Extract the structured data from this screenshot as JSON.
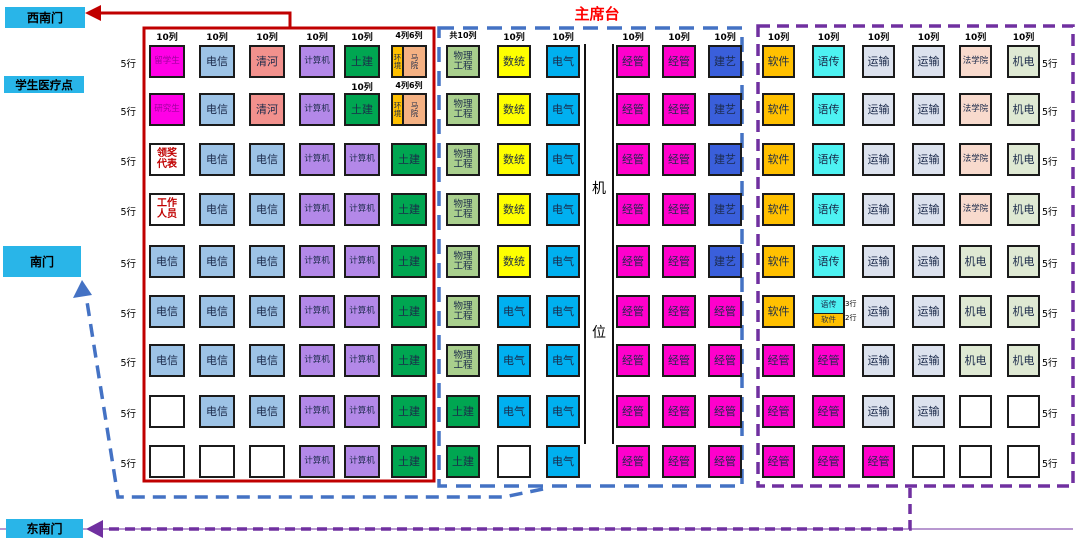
{
  "title": "主席台",
  "gates": {
    "southwest": "西南门",
    "medical": "学生医疗点",
    "south": "南门",
    "southeast": "东南门"
  },
  "row_label": "5行",
  "camera": {
    "chars": [
      "机",
      "位"
    ]
  },
  "palette": {
    "intl": "#FF00E6",
    "grad": "#FF00E6",
    "dianxin": "#9DC3E6",
    "qinghe": "#F2918D",
    "jisuanji": "#B388E8",
    "tujian": "#00A651",
    "huanjing": "#FFC000",
    "mayuan": "#F4B183",
    "wuli": "#A9CF8D",
    "shutong": "#FFFF00",
    "dianqi": "#00B0F0",
    "jingguan": "#FF00CC",
    "jianyi": "#3A5FDB",
    "ruanjian": "#FFC000",
    "yuchuan": "#4DF2F2",
    "yunshu": "#DCE2EE",
    "faxueyuan": "#F8DACD",
    "jidian": "#DFE9D3",
    "gate_bg": "#29B5E8",
    "special_text": "#C00000",
    "left_border": "#C00000",
    "middle_border": "#4472C4",
    "right_border": "#7030A0",
    "stage_title": "#FF0000"
  },
  "sections": {
    "left": {
      "headers": [
        "10列",
        "10列",
        "10列",
        "10列",
        "10列",
        "4列6列"
      ],
      "sub_headers": [
        "10列",
        "4列6列"
      ],
      "rows": [
        [
          {
            "t": "留学生",
            "c": "intl",
            "tc": "#a000a0"
          },
          {
            "t": "电信",
            "c": "dianxin"
          },
          {
            "t": "清河",
            "c": "qinghe"
          },
          {
            "t": "计算机",
            "c": "jisuanji"
          },
          {
            "t": "土建",
            "c": "tujian"
          },
          {
            "vsplit": [
              {
                "t": "环境",
                "c": "huanjing"
              },
              {
                "t": "马院",
                "c": "mayuan"
              }
            ]
          }
        ],
        [
          {
            "t": "研究生",
            "c": "grad",
            "tc": "#a000a0"
          },
          {
            "t": "电信",
            "c": "dianxin"
          },
          {
            "t": "清河",
            "c": "qinghe"
          },
          {
            "t": "计算机",
            "c": "jisuanji"
          },
          {
            "t": "土建",
            "c": "tujian"
          },
          {
            "vsplit": [
              {
                "t": "环境",
                "c": "huanjing"
              },
              {
                "t": "马院",
                "c": "mayuan"
              }
            ]
          }
        ],
        [
          {
            "t": "领奖代表",
            "special": true
          },
          {
            "t": "电信",
            "c": "dianxin"
          },
          {
            "t": "电信",
            "c": "dianxin"
          },
          {
            "t": "计算机",
            "c": "jisuanji"
          },
          {
            "t": "计算机",
            "c": "jisuanji"
          },
          {
            "t": "土建",
            "c": "tujian"
          }
        ],
        [
          {
            "t": "工作人员",
            "special": true
          },
          {
            "t": "电信",
            "c": "dianxin"
          },
          {
            "t": "电信",
            "c": "dianxin"
          },
          {
            "t": "计算机",
            "c": "jisuanji"
          },
          {
            "t": "计算机",
            "c": "jisuanji"
          },
          {
            "t": "土建",
            "c": "tujian"
          }
        ],
        [
          {
            "t": "电信",
            "c": "dianxin"
          },
          {
            "t": "电信",
            "c": "dianxin"
          },
          {
            "t": "电信",
            "c": "dianxin"
          },
          {
            "t": "计算机",
            "c": "jisuanji"
          },
          {
            "t": "计算机",
            "c": "jisuanji"
          },
          {
            "t": "土建",
            "c": "tujian"
          }
        ],
        [
          {
            "t": "电信",
            "c": "dianxin"
          },
          {
            "t": "电信",
            "c": "dianxin"
          },
          {
            "t": "电信",
            "c": "dianxin"
          },
          {
            "t": "计算机",
            "c": "jisuanji"
          },
          {
            "t": "计算机",
            "c": "jisuanji"
          },
          {
            "t": "土建",
            "c": "tujian"
          }
        ],
        [
          {
            "t": "电信",
            "c": "dianxin"
          },
          {
            "t": "电信",
            "c": "dianxin"
          },
          {
            "t": "电信",
            "c": "dianxin"
          },
          {
            "t": "计算机",
            "c": "jisuanji"
          },
          {
            "t": "计算机",
            "c": "jisuanji"
          },
          {
            "t": "土建",
            "c": "tujian"
          }
        ],
        [
          null,
          {
            "t": "电信",
            "c": "dianxin"
          },
          {
            "t": "电信",
            "c": "dianxin"
          },
          {
            "t": "计算机",
            "c": "jisuanji"
          },
          {
            "t": "计算机",
            "c": "jisuanji"
          },
          {
            "t": "土建",
            "c": "tujian"
          }
        ],
        [
          null,
          null,
          null,
          {
            "t": "计算机",
            "c": "jisuanji"
          },
          {
            "t": "计算机",
            "c": "jisuanji"
          },
          {
            "t": "土建",
            "c": "tujian"
          }
        ]
      ]
    },
    "middle": {
      "headers": [
        "共10列",
        "10列",
        "10列",
        "10列",
        "10列",
        "10列"
      ],
      "rows": [
        [
          {
            "t": "物理工程",
            "c": "wuli"
          },
          {
            "t": "数统",
            "c": "shutong"
          },
          {
            "t": "电气",
            "c": "dianqi"
          },
          {
            "t": "经管",
            "c": "jingguan"
          },
          {
            "t": "经管",
            "c": "jingguan"
          },
          {
            "t": "建艺",
            "c": "jianyi"
          }
        ],
        [
          {
            "t": "物理工程",
            "c": "wuli"
          },
          {
            "t": "数统",
            "c": "shutong"
          },
          {
            "t": "电气",
            "c": "dianqi"
          },
          {
            "t": "经管",
            "c": "jingguan"
          },
          {
            "t": "经管",
            "c": "jingguan"
          },
          {
            "t": "建艺",
            "c": "jianyi"
          }
        ],
        [
          {
            "t": "物理工程",
            "c": "wuli"
          },
          {
            "t": "数统",
            "c": "shutong"
          },
          {
            "t": "电气",
            "c": "dianqi"
          },
          {
            "t": "经管",
            "c": "jingguan"
          },
          {
            "t": "经管",
            "c": "jingguan"
          },
          {
            "t": "建艺",
            "c": "jianyi"
          }
        ],
        [
          {
            "t": "物理工程",
            "c": "wuli"
          },
          {
            "t": "数统",
            "c": "shutong"
          },
          {
            "t": "电气",
            "c": "dianqi"
          },
          {
            "t": "经管",
            "c": "jingguan"
          },
          {
            "t": "经管",
            "c": "jingguan"
          },
          {
            "t": "建艺",
            "c": "jianyi"
          }
        ],
        [
          {
            "t": "物理工程",
            "c": "wuli"
          },
          {
            "t": "数统",
            "c": "shutong"
          },
          {
            "t": "电气",
            "c": "dianqi"
          },
          {
            "t": "经管",
            "c": "jingguan"
          },
          {
            "t": "经管",
            "c": "jingguan"
          },
          {
            "t": "建艺",
            "c": "jianyi"
          }
        ],
        [
          {
            "t": "物理工程",
            "c": "wuli"
          },
          {
            "t": "电气",
            "c": "dianqi"
          },
          {
            "t": "电气",
            "c": "dianqi"
          },
          {
            "t": "经管",
            "c": "jingguan"
          },
          {
            "t": "经管",
            "c": "jingguan"
          },
          {
            "t": "经管",
            "c": "jingguan"
          }
        ],
        [
          {
            "t": "物理工程",
            "c": "wuli"
          },
          {
            "t": "电气",
            "c": "dianqi"
          },
          {
            "t": "电气",
            "c": "dianqi"
          },
          {
            "t": "经管",
            "c": "jingguan"
          },
          {
            "t": "经管",
            "c": "jingguan"
          },
          {
            "t": "经管",
            "c": "jingguan"
          }
        ],
        [
          {
            "t": "土建",
            "c": "tujian"
          },
          {
            "t": "电气",
            "c": "dianqi"
          },
          {
            "t": "电气",
            "c": "dianqi"
          },
          {
            "t": "经管",
            "c": "jingguan"
          },
          {
            "t": "经管",
            "c": "jingguan"
          },
          {
            "t": "经管",
            "c": "jingguan"
          }
        ],
        [
          {
            "t": "土建",
            "c": "tujian"
          },
          null,
          {
            "t": "电气",
            "c": "dianqi"
          },
          {
            "t": "经管",
            "c": "jingguan"
          },
          {
            "t": "经管",
            "c": "jingguan"
          },
          {
            "t": "经管",
            "c": "jingguan"
          }
        ]
      ]
    },
    "right": {
      "headers": [
        "10列",
        "10列",
        "10列",
        "10列",
        "10列",
        "10列"
      ],
      "rows": [
        [
          {
            "t": "软件",
            "c": "ruanjian"
          },
          {
            "t": "语传",
            "c": "yuchuan"
          },
          {
            "t": "运输",
            "c": "yunshu"
          },
          {
            "t": "运输",
            "c": "yunshu"
          },
          {
            "t": "法学院",
            "c": "faxueyuan"
          },
          {
            "t": "机电",
            "c": "jidian"
          }
        ],
        [
          {
            "t": "软件",
            "c": "ruanjian"
          },
          {
            "t": "语传",
            "c": "yuchuan"
          },
          {
            "t": "运输",
            "c": "yunshu"
          },
          {
            "t": "运输",
            "c": "yunshu"
          },
          {
            "t": "法学院",
            "c": "faxueyuan"
          },
          {
            "t": "机电",
            "c": "jidian"
          }
        ],
        [
          {
            "t": "软件",
            "c": "ruanjian"
          },
          {
            "t": "语传",
            "c": "yuchuan"
          },
          {
            "t": "运输",
            "c": "yunshu"
          },
          {
            "t": "运输",
            "c": "yunshu"
          },
          {
            "t": "法学院",
            "c": "faxueyuan"
          },
          {
            "t": "机电",
            "c": "jidian"
          }
        ],
        [
          {
            "t": "软件",
            "c": "ruanjian"
          },
          {
            "t": "语传",
            "c": "yuchuan"
          },
          {
            "t": "运输",
            "c": "yunshu"
          },
          {
            "t": "运输",
            "c": "yunshu"
          },
          {
            "t": "法学院",
            "c": "faxueyuan"
          },
          {
            "t": "机电",
            "c": "jidian"
          }
        ],
        [
          {
            "t": "软件",
            "c": "ruanjian"
          },
          {
            "t": "语传",
            "c": "yuchuan"
          },
          {
            "t": "运输",
            "c": "yunshu"
          },
          {
            "t": "运输",
            "c": "yunshu"
          },
          {
            "t": "机电",
            "c": "jidian"
          },
          {
            "t": "机电",
            "c": "jidian"
          }
        ],
        [
          {
            "t": "软件",
            "c": "ruanjian"
          },
          {
            "hsplit": [
              {
                "t": "语传",
                "c": "yuchuan",
                "rows": "3行"
              },
              {
                "t": "软件",
                "c": "ruanjian",
                "rows": "2行"
              }
            ]
          },
          {
            "t": "运输",
            "c": "yunshu"
          },
          {
            "t": "运输",
            "c": "yunshu"
          },
          {
            "t": "机电",
            "c": "jidian"
          },
          {
            "t": "机电",
            "c": "jidian"
          }
        ],
        [
          {
            "t": "经管",
            "c": "jingguan"
          },
          {
            "t": "经管",
            "c": "jingguan"
          },
          {
            "t": "运输",
            "c": "yunshu"
          },
          {
            "t": "运输",
            "c": "yunshu"
          },
          {
            "t": "机电",
            "c": "jidian"
          },
          {
            "t": "机电",
            "c": "jidian"
          }
        ],
        [
          {
            "t": "经管",
            "c": "jingguan"
          },
          {
            "t": "经管",
            "c": "jingguan"
          },
          {
            "t": "运输",
            "c": "yunshu"
          },
          {
            "t": "运输",
            "c": "yunshu"
          },
          null,
          null
        ],
        [
          {
            "t": "经管",
            "c": "jingguan"
          },
          {
            "t": "经管",
            "c": "jingguan"
          },
          {
            "t": "经管",
            "c": "jingguan"
          },
          null,
          null,
          null
        ]
      ]
    }
  }
}
